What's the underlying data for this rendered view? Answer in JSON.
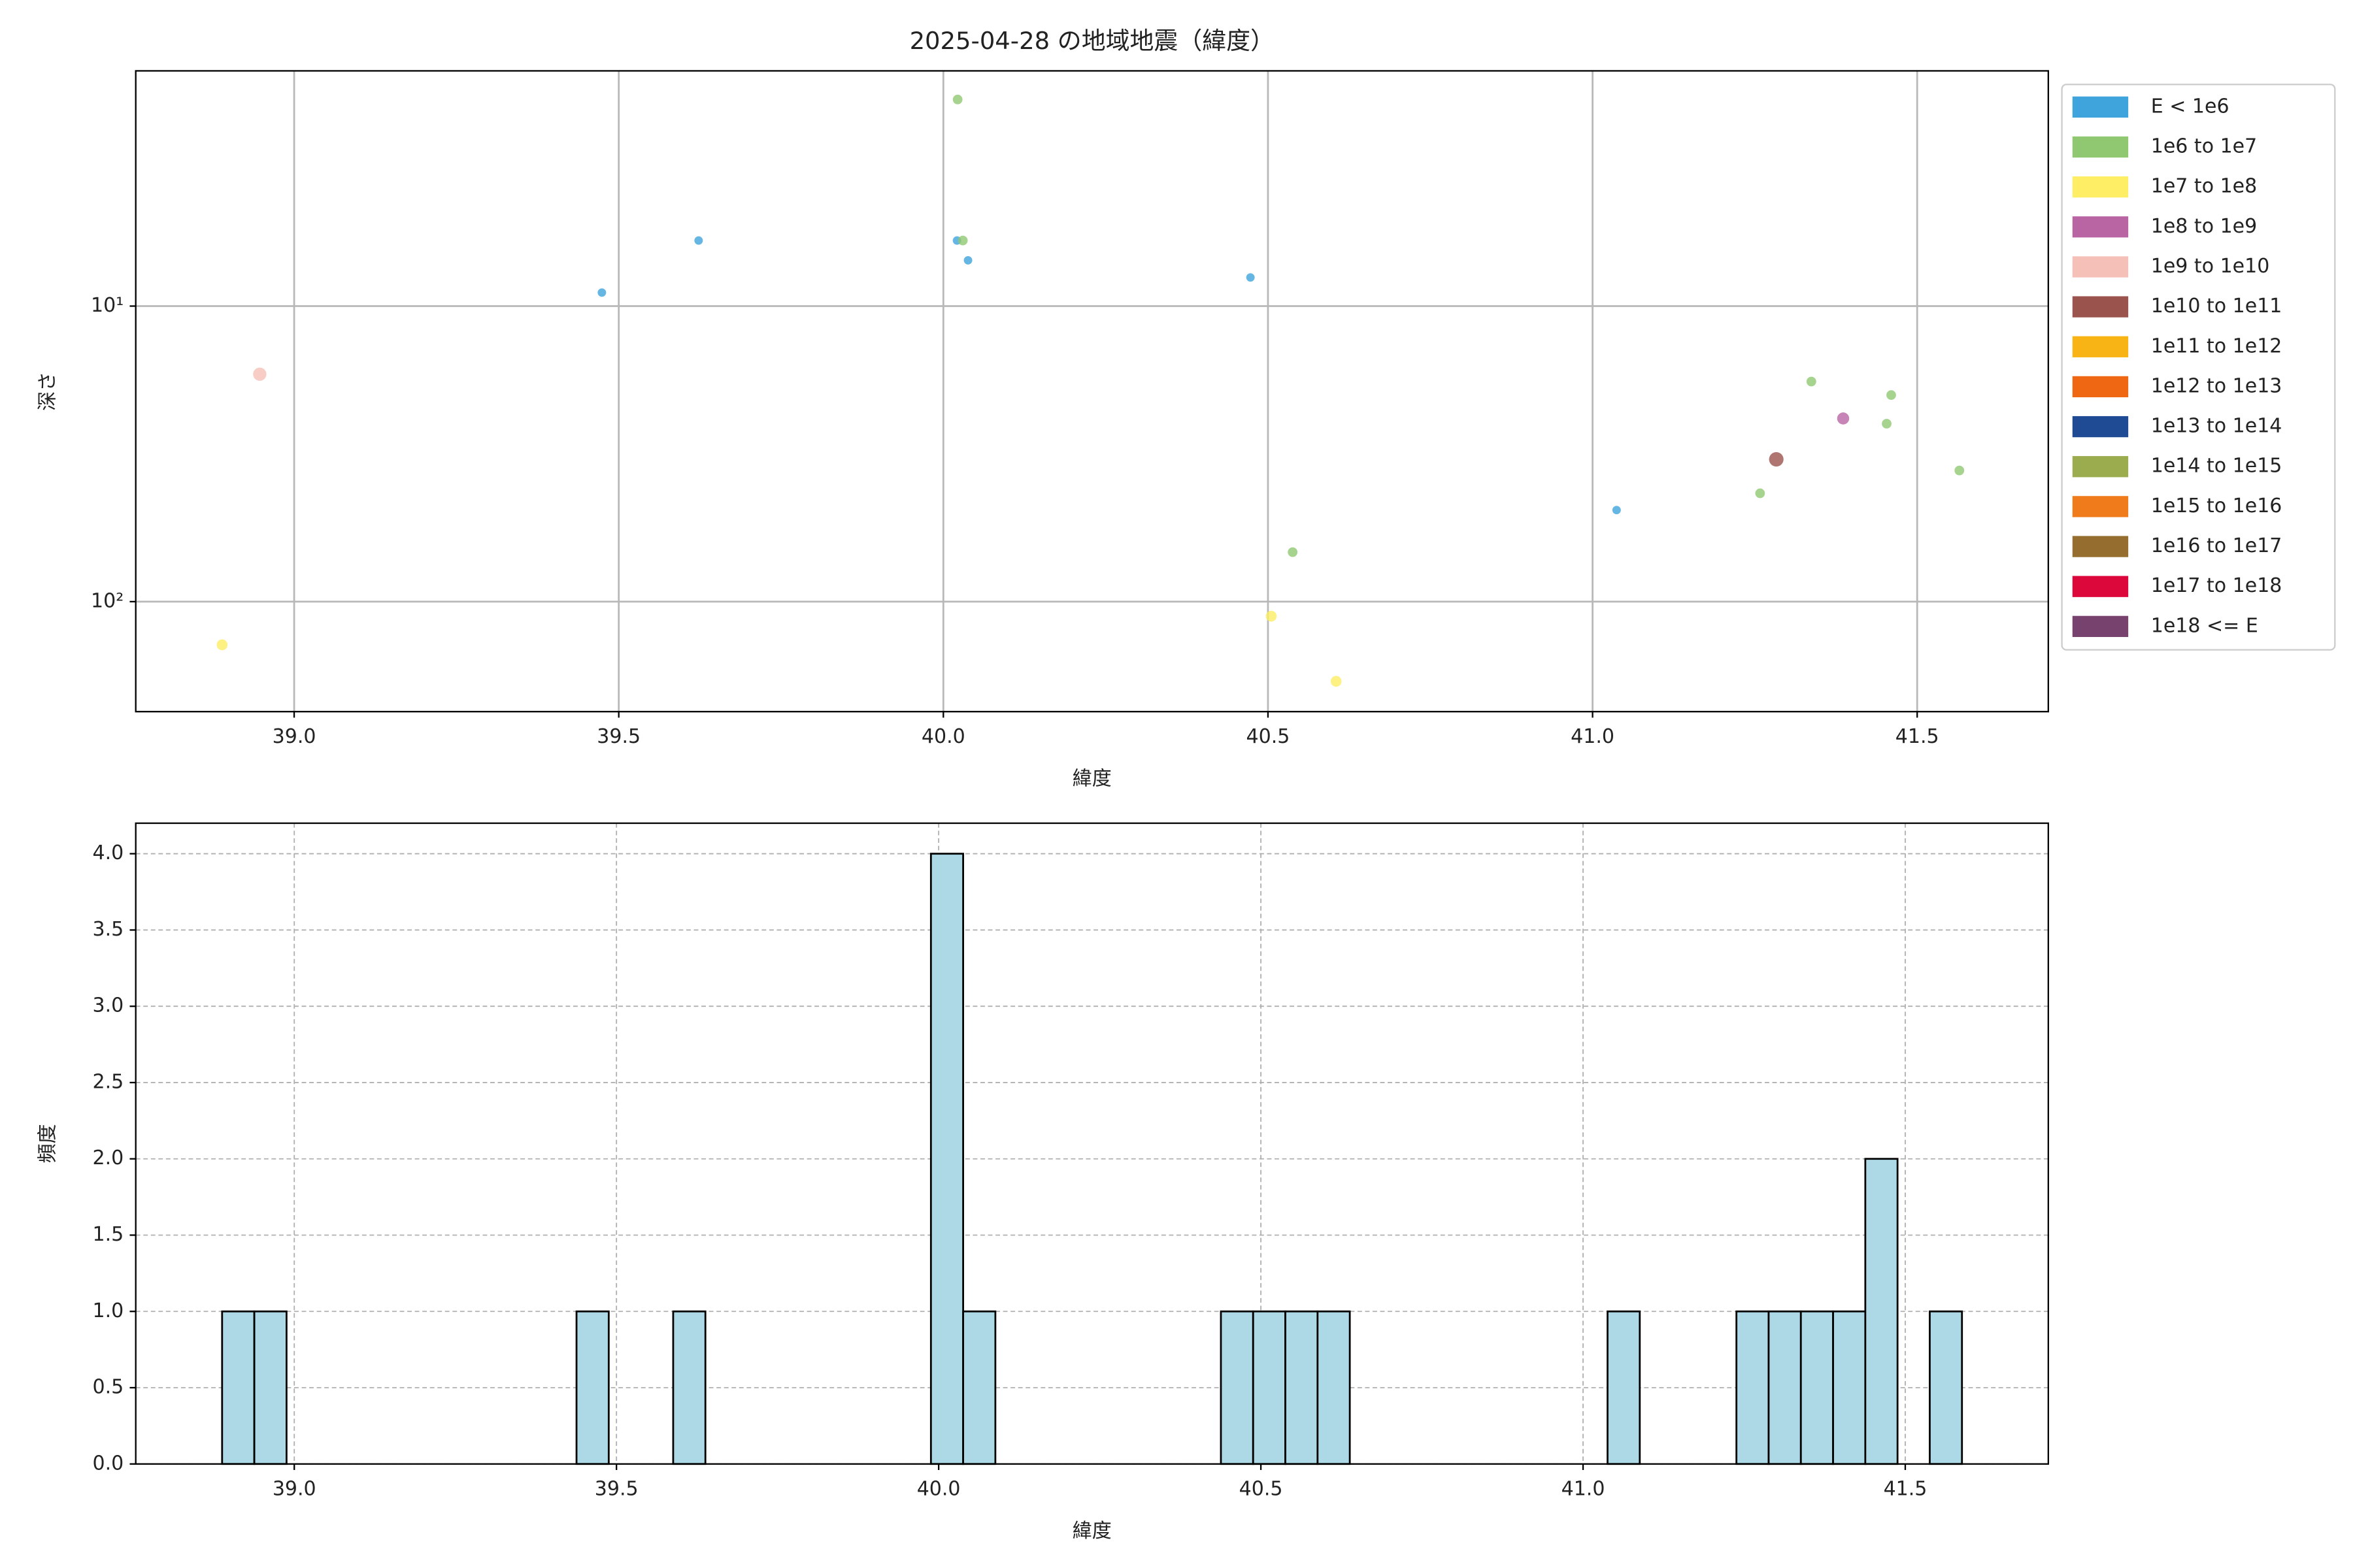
{
  "chart_data": [
    {
      "type": "scatter",
      "title": "2025-04-28 の地域地震（緯度）",
      "x_label": "緯度",
      "y_label": "深さ",
      "xlim": [
        38.756,
        41.702
      ],
      "xticks": [
        {
          "value": 39,
          "label": "39.0"
        },
        39.5,
        {
          "value": 40,
          "label": "40.0"
        },
        40.5,
        {
          "value": 41,
          "label": "41.0"
        },
        41.5
      ],
      "ylim": [
        1.6,
        235.6
      ],
      "yscale": "log",
      "yinvert": true,
      "yticks": [
        {
          "value": 10,
          "label": "10¹"
        },
        {
          "value": 100,
          "label": "10²"
        }
      ],
      "grid": "solid",
      "legend": "outside right",
      "series": [
        {
          "name": "E < 1e6",
          "color": "#3fa4dc",
          "x": [
            39.474,
            39.623,
            40.021,
            40.038,
            40.473,
            41.037
          ],
          "values": [
            9,
            6,
            6,
            7,
            8,
            49
          ]
        },
        {
          "name": "1e6 to 1e7",
          "color": "#90c872",
          "x": [
            40.022,
            40.03,
            41.337,
            41.46,
            41.453,
            41.258,
            41.565,
            40.538
          ],
          "values": [
            2,
            6,
            18,
            20,
            25,
            43,
            36,
            68
          ]
        },
        {
          "name": "1e7 to 1e8",
          "color": "#fdee65",
          "x": [
            38.889,
            40.505,
            40.605
          ],
          "values": [
            140,
            112,
            186
          ]
        },
        {
          "name": "1e8 to 1e9",
          "color": "#b965a4",
          "x": [
            41.386
          ],
          "values": [
            24
          ]
        },
        {
          "name": "1e9 to 1e10",
          "color": "#f5c0b8",
          "x": [
            38.947
          ],
          "values": [
            17
          ]
        },
        {
          "name": "1e10 to 1e11",
          "color": "#9b534e",
          "x": [
            41.283
          ],
          "values": [
            33
          ]
        },
        {
          "name": "1e11 to 1e12",
          "color": "#f8b415",
          "x": [],
          "values": []
        },
        {
          "name": "1e12 to 1e13",
          "color": "#ef6712",
          "x": [],
          "values": []
        },
        {
          "name": "1e13 to 1e14",
          "color": "#1f4b94",
          "x": [],
          "values": []
        },
        {
          "name": "1e14 to 1e15",
          "color": "#9aac4e",
          "x": [],
          "values": []
        },
        {
          "name": "1e15 to 1e16",
          "color": "#ef7b1a",
          "x": [],
          "values": []
        },
        {
          "name": "1e16 to 1e17",
          "color": "#956d2e",
          "x": [],
          "values": []
        },
        {
          "name": "1e17 to 1e18",
          "color": "#dc073a",
          "x": [],
          "values": []
        },
        {
          "name": "1e18 <= E",
          "color": "#78426e",
          "x": [],
          "values": []
        }
      ]
    },
    {
      "type": "histogram",
      "x_label": "緯度",
      "y_label": "頻度",
      "color": "#add8e6",
      "edgecolor": "#000000",
      "bins": [
        38.888,
        38.938,
        38.988,
        39.038,
        39.088,
        39.138,
        39.188,
        39.238,
        39.288,
        39.338,
        39.388,
        39.438,
        39.488,
        39.538,
        39.588,
        39.638,
        39.688,
        39.738,
        39.788,
        39.838,
        39.888,
        39.938,
        39.988,
        40.038,
        40.088,
        40.138,
        40.188,
        40.238,
        40.288,
        40.338,
        40.388,
        40.438,
        40.488,
        40.538,
        40.588,
        40.638,
        40.688,
        40.738,
        40.788,
        40.838,
        40.888,
        40.938,
        40.988,
        41.038,
        41.088,
        41.138,
        41.188,
        41.238,
        41.288,
        41.338,
        41.388,
        41.438,
        41.488,
        41.538,
        41.588
      ],
      "counts": [
        1,
        1,
        0,
        0,
        0,
        0,
        0,
        0,
        0,
        0,
        0,
        1,
        0,
        0,
        1,
        0,
        0,
        0,
        0,
        0,
        0,
        0,
        4,
        1,
        0,
        0,
        0,
        0,
        0,
        0,
        0,
        1,
        1,
        1,
        1,
        0,
        0,
        0,
        0,
        0,
        0,
        0,
        0,
        1,
        0,
        0,
        0,
        1,
        1,
        1,
        1,
        2,
        0,
        1
      ],
      "xlim": [
        38.754,
        41.722
      ],
      "xticks": [
        {
          "value": 39,
          "label": "39.0"
        },
        39.5,
        {
          "value": 40,
          "label": "40.0"
        },
        40.5,
        {
          "value": 41,
          "label": "41.0"
        },
        41.5
      ],
      "ylim": [
        0,
        4.2
      ],
      "yticks": [
        {
          "value": 0,
          "label": "0.0"
        },
        0.5,
        {
          "value": 1,
          "label": "1.0"
        },
        1.5,
        {
          "value": 2,
          "label": "2.0"
        },
        2.5,
        {
          "value": 3,
          "label": "3.0"
        },
        3.5,
        {
          "value": 4,
          "label": "4.0"
        }
      ],
      "grid": "dashed"
    }
  ]
}
